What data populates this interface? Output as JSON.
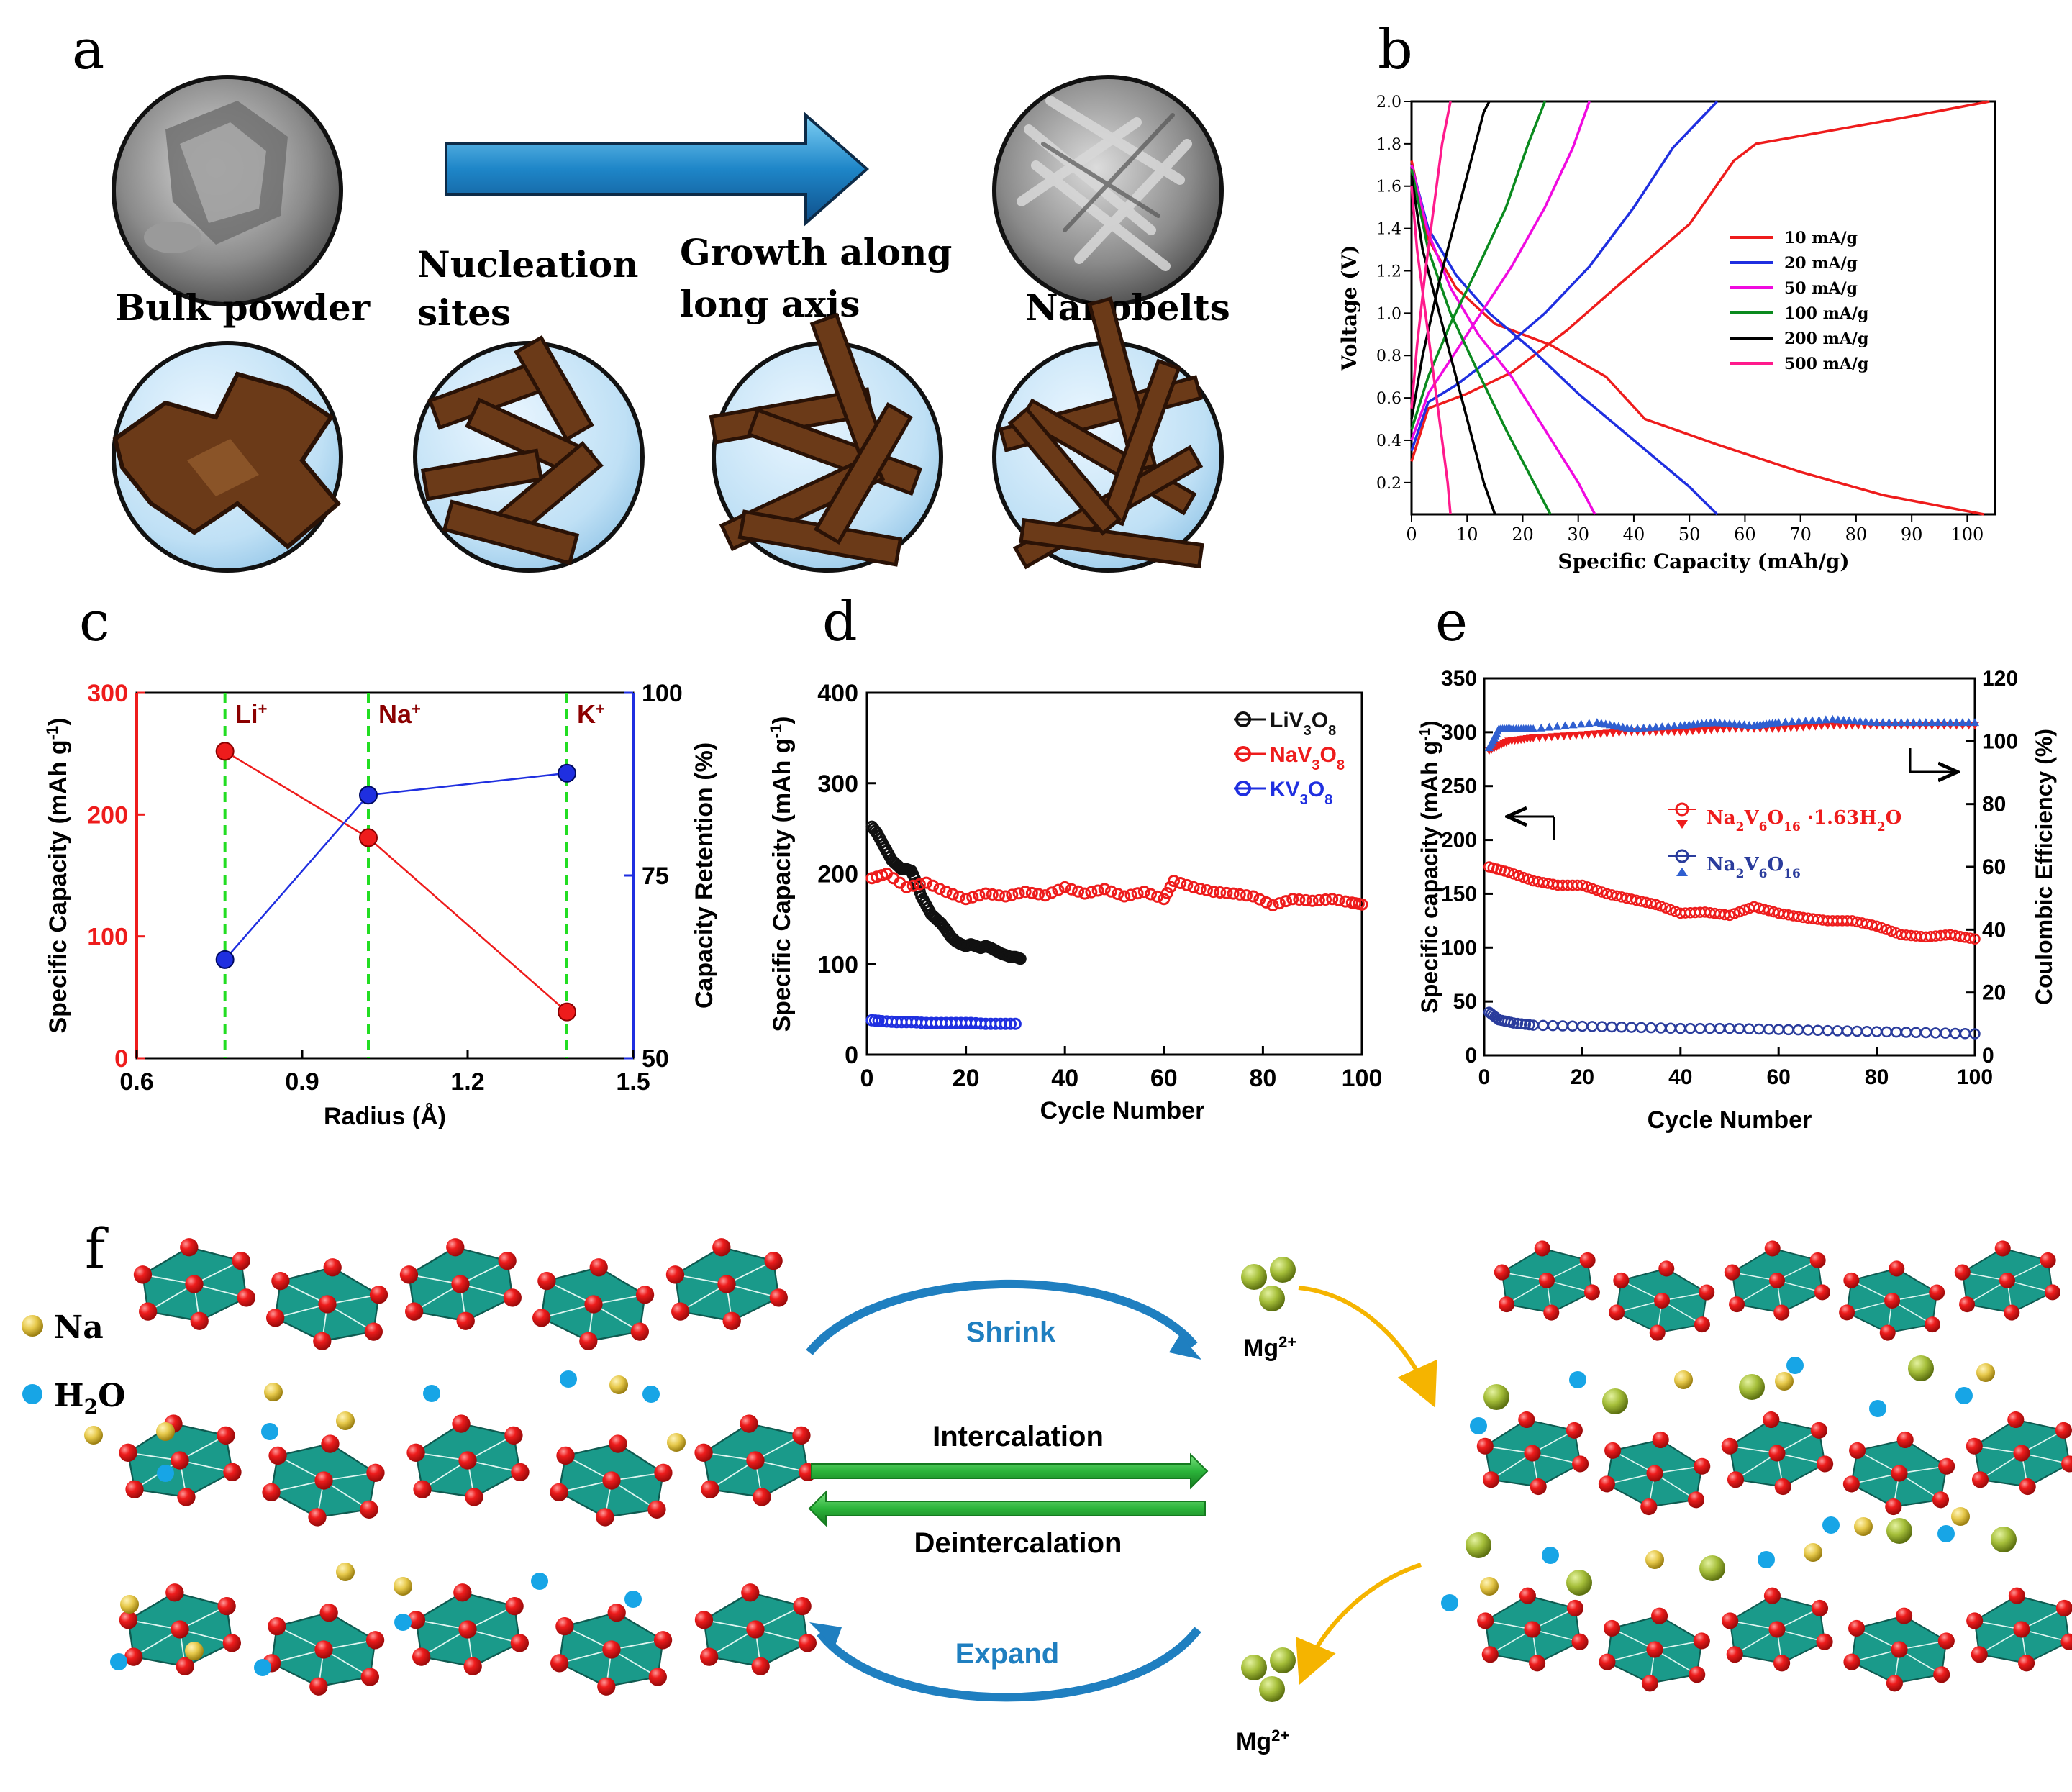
{
  "panels": {
    "a": {
      "letter": "a",
      "labels": [
        "Bulk powder",
        "Nucleation",
        "sites",
        "Growth along",
        "long axis",
        "Nanobelts"
      ]
    },
    "b": {
      "letter": "b"
    },
    "c": {
      "letter": "c"
    },
    "d": {
      "letter": "d"
    },
    "e": {
      "letter": "e"
    },
    "f": {
      "letter": "f",
      "legend_na": "Na",
      "legend_h2o": "H",
      "legend_h2o_sub": "2",
      "legend_h2o_end": "O",
      "shrink": "Shrink",
      "expand": "Expand",
      "intercalation": "Intercalation",
      "deintercalation": "Deintercalation",
      "mg_top": "Mg",
      "mg_bottom": "Mg",
      "mg_charge": "2+"
    }
  },
  "colors": {
    "red": "#ee1c1c",
    "blue": "#1f2fe0",
    "magenta": "#f00ae0",
    "green": "#0a8a1e",
    "black": "#000000",
    "pink": "#ff1a8c",
    "teal": "#1a9a8a",
    "oxygen": "#e8141e",
    "na": "#e6c84a",
    "water": "#17a5e6",
    "mg": "#a6bf3a",
    "arrow_blue": "#1f7fc0",
    "arrow_green": "#2bb43a",
    "arrow_orange": "#f5b400"
  },
  "chart_data": [
    {
      "panel": "b",
      "type": "line",
      "xlabel": "Specific Capacity (mAh/g)",
      "ylabel": "Voltage (V)",
      "xlim": [
        0,
        105
      ],
      "ylim": [
        0.05,
        2.0
      ],
      "xticks": [
        "0",
        "10",
        "20",
        "30",
        "40",
        "50",
        "60",
        "70",
        "80",
        "90",
        "100"
      ],
      "yticks": [
        "0.2",
        "0.4",
        "0.6",
        "0.8",
        "1.0",
        "1.2",
        "1.4",
        "1.6",
        "1.8",
        "2.0"
      ],
      "series": [
        {
          "name": "10 mA/g",
          "discharge": [
            [
              0,
              1.72
            ],
            [
              3,
              1.35
            ],
            [
              8,
              1.12
            ],
            [
              15,
              0.95
            ],
            [
              25,
              0.85
            ],
            [
              35,
              0.7
            ],
            [
              42,
              0.5
            ],
            [
              55,
              0.38
            ],
            [
              70,
              0.25
            ],
            [
              85,
              0.14
            ],
            [
              103,
              0.05
            ]
          ],
          "charge": [
            [
              0,
              0.3
            ],
            [
              3,
              0.55
            ],
            [
              10,
              0.62
            ],
            [
              18,
              0.72
            ],
            [
              28,
              0.92
            ],
            [
              38,
              1.15
            ],
            [
              50,
              1.42
            ],
            [
              58,
              1.72
            ],
            [
              62,
              1.8
            ],
            [
              75,
              1.86
            ],
            [
              90,
              1.93
            ],
            [
              104,
              2.0
            ]
          ]
        },
        {
          "name": "20 mA/g",
          "discharge": [
            [
              0,
              1.7
            ],
            [
              3,
              1.4
            ],
            [
              8,
              1.18
            ],
            [
              14,
              1.0
            ],
            [
              22,
              0.82
            ],
            [
              30,
              0.62
            ],
            [
              40,
              0.4
            ],
            [
              50,
              0.18
            ],
            [
              55,
              0.05
            ]
          ],
          "charge": [
            [
              0,
              0.35
            ],
            [
              3,
              0.58
            ],
            [
              8,
              0.66
            ],
            [
              16,
              0.82
            ],
            [
              24,
              1.0
            ],
            [
              32,
              1.22
            ],
            [
              40,
              1.5
            ],
            [
              47,
              1.78
            ],
            [
              55,
              2.0
            ]
          ]
        },
        {
          "name": "50 mA/g",
          "discharge": [
            [
              0,
              1.7
            ],
            [
              3,
              1.38
            ],
            [
              7,
              1.12
            ],
            [
              12,
              0.9
            ],
            [
              18,
              0.7
            ],
            [
              24,
              0.45
            ],
            [
              30,
              0.2
            ],
            [
              33,
              0.05
            ]
          ],
          "charge": [
            [
              0,
              0.4
            ],
            [
              3,
              0.62
            ],
            [
              7,
              0.78
            ],
            [
              12,
              0.98
            ],
            [
              18,
              1.22
            ],
            [
              24,
              1.5
            ],
            [
              29,
              1.78
            ],
            [
              32,
              2.0
            ]
          ]
        },
        {
          "name": "100 mA/g",
          "discharge": [
            [
              0,
              1.68
            ],
            [
              3,
              1.3
            ],
            [
              7,
              1.0
            ],
            [
              12,
              0.72
            ],
            [
              17,
              0.45
            ],
            [
              22,
              0.2
            ],
            [
              25,
              0.05
            ]
          ],
          "charge": [
            [
              0,
              0.45
            ],
            [
              3,
              0.7
            ],
            [
              7,
              0.95
            ],
            [
              12,
              1.22
            ],
            [
              17,
              1.5
            ],
            [
              21,
              1.8
            ],
            [
              24,
              2.0
            ]
          ]
        },
        {
          "name": "200 mA/g",
          "discharge": [
            [
              0,
              1.65
            ],
            [
              2,
              1.3
            ],
            [
              5,
              1.0
            ],
            [
              8,
              0.7
            ],
            [
              11,
              0.4
            ],
            [
              13,
              0.2
            ],
            [
              15,
              0.05
            ]
          ],
          "charge": [
            [
              0,
              0.5
            ],
            [
              2,
              0.8
            ],
            [
              5,
              1.15
            ],
            [
              8,
              1.45
            ],
            [
              11,
              1.75
            ],
            [
              13,
              1.95
            ],
            [
              14,
              2.0
            ]
          ]
        },
        {
          "name": "500 mA/g",
          "discharge": [
            [
              0,
              1.6
            ],
            [
              1,
              1.3
            ],
            [
              2.5,
              1.0
            ],
            [
              4,
              0.7
            ],
            [
              5.5,
              0.4
            ],
            [
              6.5,
              0.2
            ],
            [
              7,
              0.05
            ]
          ],
          "charge": [
            [
              0,
              0.55
            ],
            [
              1,
              0.85
            ],
            [
              2.5,
              1.2
            ],
            [
              4,
              1.5
            ],
            [
              5.5,
              1.8
            ],
            [
              7,
              2.0
            ]
          ]
        }
      ]
    },
    {
      "panel": "c",
      "type": "scatter",
      "xlabel": "Radius (Å)",
      "ylabel": "Specific Capacity (mAh g",
      "ylabel_sup": "-1",
      "ylabel_end": ")",
      "y2label": "Capacity Retention  (%)",
      "xlim": [
        0.6,
        1.5
      ],
      "ylim": [
        0,
        300
      ],
      "y2lim": [
        50,
        100
      ],
      "xticks": [
        "0.6",
        "0.9",
        "1.2",
        "1.5"
      ],
      "yticks": [
        "0",
        "100",
        "200",
        "300"
      ],
      "y2ticks": [
        "50",
        "75",
        "100"
      ],
      "ions": [
        {
          "label": "Li",
          "sup": "+",
          "x": 0.76
        },
        {
          "label": "Na",
          "sup": "+",
          "x": 1.02
        },
        {
          "label": "K",
          "sup": "+",
          "x": 1.38
        }
      ],
      "capacity": {
        "x": [
          0.76,
          1.02,
          1.38
        ],
        "y": [
          252,
          181,
          38
        ]
      },
      "retention": {
        "x": [
          0.76,
          1.02,
          1.38
        ],
        "y": [
          63.5,
          86,
          89
        ]
      }
    },
    {
      "panel": "d",
      "type": "scatter",
      "xlabel": "Cycle Number",
      "ylabel": "Specific Capacity (mAh g",
      "ylabel_sup": "-1",
      "ylabel_end": ")",
      "xlim": [
        0,
        100
      ],
      "ylim": [
        0,
        400
      ],
      "xticks": [
        "0",
        "20",
        "40",
        "60",
        "80",
        "100"
      ],
      "yticks": [
        "0",
        "100",
        "200",
        "300",
        "400"
      ],
      "series": [
        {
          "name": "LiV",
          "sub1": "3",
          "mid": "O",
          "sub2": "8",
          "x": [
            1,
            2,
            3,
            4,
            5,
            6,
            7,
            8,
            9,
            10,
            11,
            12,
            13,
            14,
            15,
            16,
            17,
            18,
            19,
            20,
            21,
            22,
            23,
            24,
            25,
            26,
            27,
            28,
            29,
            30,
            31
          ],
          "y": [
            252,
            245,
            235,
            225,
            215,
            210,
            205,
            205,
            203,
            190,
            175,
            165,
            155,
            150,
            145,
            138,
            130,
            125,
            122,
            120,
            122,
            120,
            118,
            120,
            118,
            115,
            112,
            110,
            108,
            108,
            106
          ]
        },
        {
          "name": "NaV",
          "sub1": "3",
          "mid": "O",
          "sub2": "8",
          "x": [
            1,
            4,
            8,
            12,
            16,
            20,
            24,
            28,
            32,
            36,
            40,
            44,
            48,
            52,
            56,
            60,
            62,
            66,
            70,
            74,
            78,
            82,
            86,
            90,
            94,
            98,
            100
          ],
          "y": [
            195,
            200,
            185,
            190,
            180,
            172,
            178,
            175,
            180,
            176,
            185,
            178,
            183,
            175,
            180,
            172,
            192,
            185,
            180,
            178,
            175,
            165,
            172,
            170,
            172,
            168,
            166
          ]
        },
        {
          "name": "KV",
          "sub1": "3",
          "mid": "O",
          "sub2": "8",
          "x": [
            1,
            3,
            6,
            9,
            12,
            15,
            18,
            21,
            24,
            27,
            30
          ],
          "y": [
            38,
            37,
            36,
            36,
            35,
            35,
            35,
            35,
            34,
            34,
            34
          ]
        }
      ]
    },
    {
      "panel": "e",
      "type": "scatter",
      "xlabel": "Cycle Number",
      "ylabel": "Specific capacity (mAh g",
      "ylabel_sup": "-1",
      "ylabel_end": ")",
      "y2label": "Coulombic Efficiency (%)",
      "xlim": [
        0,
        100
      ],
      "ylim": [
        0,
        350
      ],
      "y2lim": [
        0,
        120
      ],
      "xticks": [
        "0",
        "20",
        "40",
        "60",
        "80",
        "100"
      ],
      "yticks": [
        "0",
        "50",
        "100",
        "150",
        "200",
        "250",
        "300",
        "350"
      ],
      "y2ticks": [
        "0",
        "20",
        "40",
        "60",
        "80",
        "100",
        "120"
      ],
      "series": [
        {
          "name": "Na",
          "sub1": "2",
          "mid": "V",
          "sub2": "6",
          "mid2": "O",
          "sub3": "16",
          "tail": " ·1.63H",
          "sub4": "2",
          "tail2": "O",
          "capacity": {
            "x": [
              1,
              5,
              10,
              15,
              20,
              25,
              30,
              35,
              40,
              45,
              50,
              55,
              60,
              65,
              70,
              75,
              80,
              85,
              90,
              95,
              100
            ],
            "y": [
              175,
              170,
              162,
              158,
              158,
              150,
              145,
              140,
              132,
              133,
              130,
              138,
              132,
              128,
              125,
              125,
              120,
              112,
              110,
              112,
              108
            ]
          },
          "efficiency": {
            "x": [
              1,
              5,
              10,
              20,
              30,
              40,
              50,
              60,
              70,
              80,
              90,
              100
            ],
            "y": [
              97,
              100,
              101,
              102,
              103,
              103,
              104,
              104,
              105,
              105,
              105,
              105
            ]
          }
        },
        {
          "name": "Na",
          "sub1": "2",
          "mid": "V",
          "sub2": "6",
          "mid2": "O",
          "sub3": "16",
          "tail": "",
          "sub4": "",
          "tail2": "",
          "capacity": {
            "x": [
              1,
              3,
              6,
              10,
              20,
              30,
              40,
              50,
              60,
              70,
              80,
              90,
              100
            ],
            "y": [
              40,
              33,
              30,
              28,
              27,
              26,
              25,
              25,
              24,
              23,
              22,
              21,
              20
            ]
          },
          "efficiency": {
            "x": [
              1,
              3,
              6,
              10,
              23,
              30,
              40,
              47,
              55,
              60,
              71,
              80,
              90,
              100
            ],
            "y": [
              98,
              104,
              104,
              104,
              106,
              104,
              105,
              106,
              105,
              106,
              107,
              106,
              106,
              106
            ]
          }
        }
      ]
    }
  ]
}
